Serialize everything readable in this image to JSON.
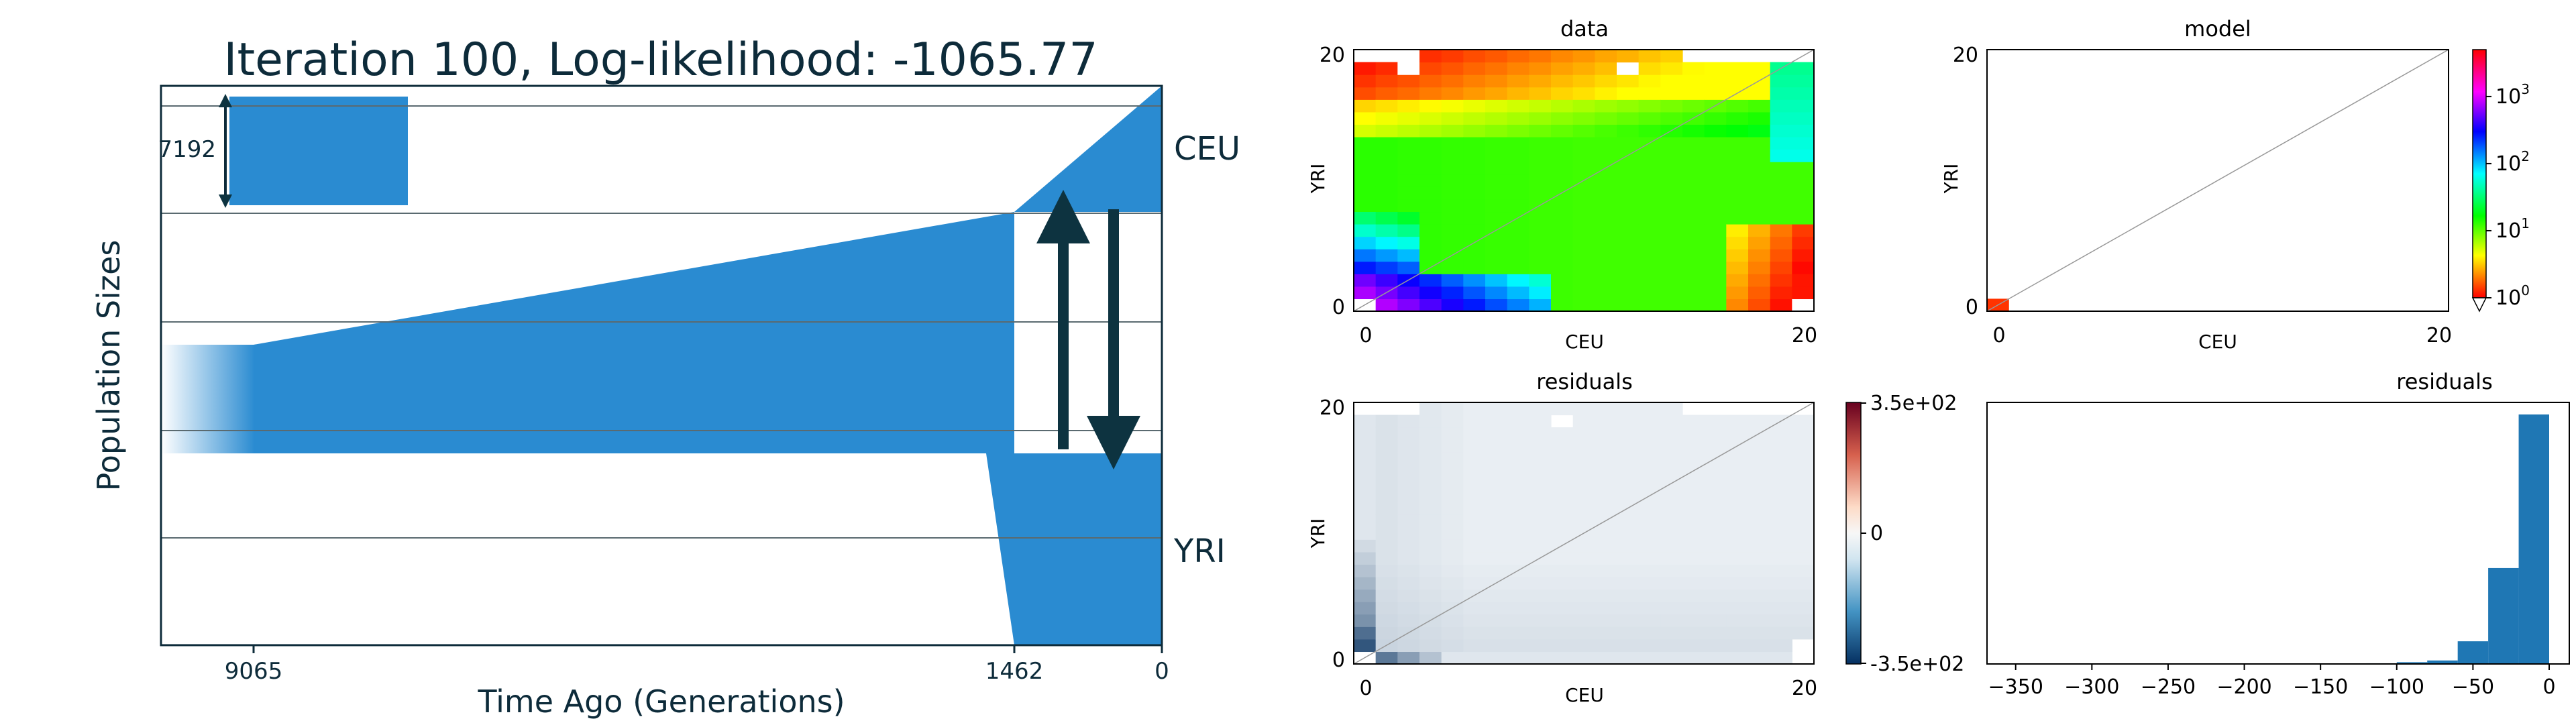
{
  "colors": {
    "population_fill": "#2a8bd1",
    "arrow": "#0d3340",
    "hist_bar": "#1f77b4",
    "diagonal": "#999999"
  },
  "demography": {
    "title": "Iteration 100, Log-likelihood: -1065.77",
    "ylabel": "Population Sizes",
    "xlabel": "Time Ago (Generations)",
    "xticks": [
      "9065",
      "1462",
      "0"
    ],
    "scale_bar_label": "7192",
    "populations": [
      "CEU",
      "YRI"
    ]
  },
  "chart_data": [
    {
      "type": "heatmap",
      "title": "data",
      "xlabel": "CEU",
      "ylabel": "YRI",
      "xticks": [
        "0",
        "20"
      ],
      "yticks": [
        "0",
        "20"
      ],
      "colormap": "hsv-log",
      "value_range": [
        1,
        5000
      ],
      "grid_size": [
        21,
        21
      ]
    },
    {
      "type": "heatmap",
      "title": "model",
      "xlabel": "CEU",
      "ylabel": "",
      "xticks": [
        "0",
        "20"
      ],
      "yticks": [
        "0",
        "20"
      ],
      "y_axis_label": "YRI",
      "colorbar": {
        "scale": "log",
        "ticks": [
          {
            "label": "10",
            "exp": "3",
            "value": 1000
          },
          {
            "label": "10",
            "exp": "2",
            "value": 100
          },
          {
            "label": "10",
            "exp": "1",
            "value": 10
          },
          {
            "label": "10",
            "exp": "0",
            "value": 1
          }
        ],
        "range": [
          1,
          5000
        ]
      },
      "cells": [
        {
          "x": 0,
          "y": 0,
          "value": 2
        }
      ]
    },
    {
      "type": "heatmap",
      "title": "residuals",
      "xlabel": "CEU",
      "ylabel": "YRI",
      "xticks": [
        "0",
        "20"
      ],
      "yticks": [
        "0",
        "20"
      ],
      "colormap": "RdBu_r",
      "colorbar": {
        "ticks": [
          "3.5e+02",
          "0",
          "-3.5e+02"
        ],
        "range": [
          -350,
          350
        ]
      }
    },
    {
      "type": "bar",
      "title": "residuals",
      "xticks": [
        "−350",
        "−300",
        "−250",
        "−200",
        "−150",
        "−100",
        "−50",
        "0"
      ],
      "xlim": [
        -360,
        0
      ],
      "bins": [
        {
          "x0": -120,
          "x1": -100,
          "count": 0.4
        },
        {
          "x0": -100,
          "x1": -80,
          "count": 1
        },
        {
          "x0": -80,
          "x1": -60,
          "count": 2
        },
        {
          "x0": -60,
          "x1": -40,
          "count": 13
        },
        {
          "x0": -40,
          "x1": -20,
          "count": 55
        },
        {
          "x0": -20,
          "x1": 0,
          "count": 143
        }
      ],
      "ylim": [
        0,
        148
      ]
    }
  ]
}
